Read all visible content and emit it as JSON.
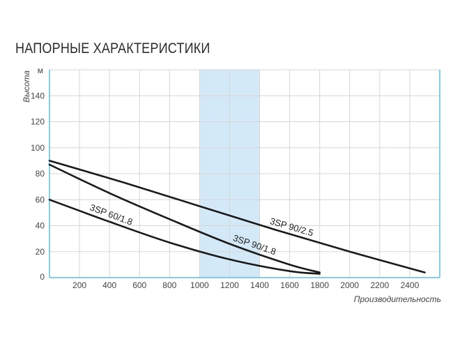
{
  "chart_data": {
    "type": "line",
    "title": "НАПОРНЫЕ ХАРАКТЕРИСТИКИ",
    "xlabel": "Производительность",
    "ylabel": "Высота",
    "yunit": "м",
    "xlim": [
      0,
      2600
    ],
    "ylim": [
      0,
      160
    ],
    "xticks": [
      "200",
      "400",
      "600",
      "800",
      "1000",
      "1200",
      "1400",
      "1600",
      "1800",
      "2000",
      "2200",
      "2400"
    ],
    "yticks": [
      "0",
      "20",
      "40",
      "60",
      "80",
      "100",
      "120",
      "140"
    ],
    "grid": true,
    "highlight_range": [
      1000,
      1400
    ],
    "colors": {
      "axis": "#5bc1dc",
      "grid": "#d5d5d5",
      "band": "#d3e9f7",
      "line": "#1a1a1a"
    },
    "series": [
      {
        "name": "3SP 60/1.8",
        "x": [
          0,
          400,
          800,
          1200,
          1600,
          1800
        ],
        "y": [
          60,
          43,
          27,
          14,
          5,
          3
        ]
      },
      {
        "name": "3SP 90/1.8",
        "x": [
          0,
          400,
          800,
          1200,
          1600,
          1800
        ],
        "y": [
          87,
          65,
          45,
          26,
          10,
          4
        ]
      },
      {
        "name": "3SP 90/2.5",
        "x": [
          0,
          500,
          1000,
          1500,
          2000,
          2500
        ],
        "y": [
          90,
          73,
          55,
          37,
          20,
          4
        ]
      }
    ]
  }
}
